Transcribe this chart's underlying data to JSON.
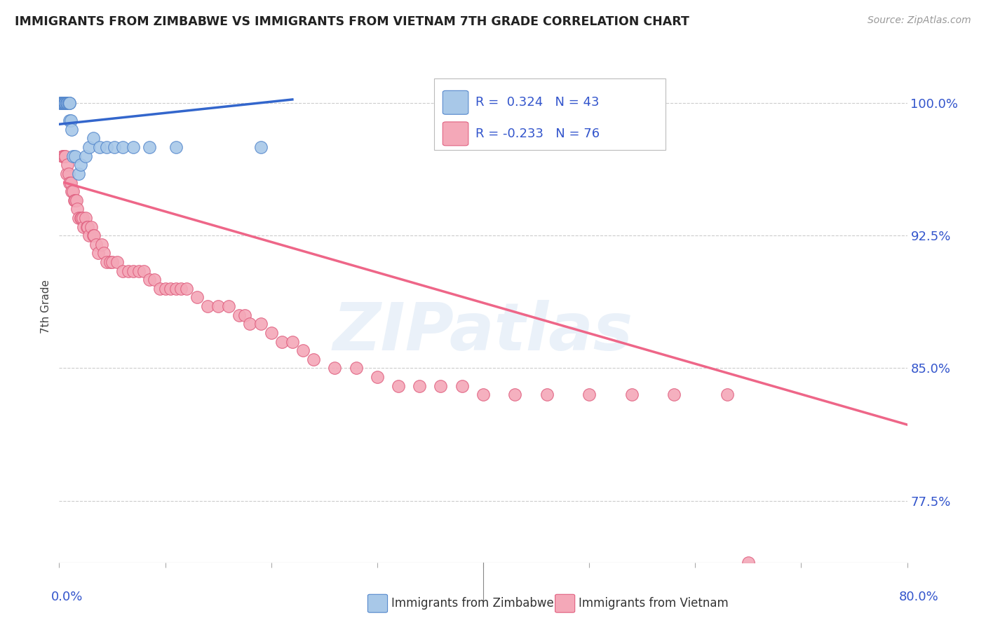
{
  "title": "IMMIGRANTS FROM ZIMBABWE VS IMMIGRANTS FROM VIETNAM 7TH GRADE CORRELATION CHART",
  "source": "Source: ZipAtlas.com",
  "ylabel": "7th Grade",
  "y_tick_labels": [
    "77.5%",
    "85.0%",
    "92.5%",
    "100.0%"
  ],
  "y_tick_vals": [
    0.775,
    0.85,
    0.925,
    1.0
  ],
  "legend_r_zimbabwe": "R =  0.324",
  "legend_n_zimbabwe": "N = 43",
  "legend_r_vietnam": "R = -0.233",
  "legend_n_vietnam": "N = 76",
  "watermark": "ZIPatlas",
  "blue_color": "#a8c8e8",
  "blue_edge": "#5588cc",
  "pink_color": "#f4a8b8",
  "pink_edge": "#e06080",
  "line_blue": "#3366cc",
  "line_pink": "#ee6688",
  "xlim": [
    0.0,
    0.8
  ],
  "ylim": [
    0.74,
    1.03
  ],
  "zimbabwe_x": [
    0.001,
    0.002,
    0.002,
    0.003,
    0.003,
    0.003,
    0.004,
    0.004,
    0.004,
    0.005,
    0.005,
    0.005,
    0.006,
    0.006,
    0.006,
    0.006,
    0.007,
    0.007,
    0.007,
    0.008,
    0.008,
    0.009,
    0.009,
    0.01,
    0.01,
    0.01,
    0.011,
    0.012,
    0.013,
    0.015,
    0.018,
    0.02,
    0.025,
    0.028,
    0.032,
    0.038,
    0.045,
    0.052,
    0.06,
    0.07,
    0.085,
    0.11,
    0.19
  ],
  "zimbabwe_y": [
    1.0,
    1.0,
    1.0,
    1.0,
    1.0,
    1.0,
    1.0,
    1.0,
    1.0,
    1.0,
    1.0,
    1.0,
    1.0,
    1.0,
    1.0,
    1.0,
    1.0,
    1.0,
    1.0,
    1.0,
    1.0,
    1.0,
    1.0,
    1.0,
    1.0,
    0.99,
    0.99,
    0.985,
    0.97,
    0.97,
    0.96,
    0.965,
    0.97,
    0.975,
    0.98,
    0.975,
    0.975,
    0.975,
    0.975,
    0.975,
    0.975,
    0.975,
    0.975
  ],
  "vietnam_x": [
    0.003,
    0.004,
    0.005,
    0.006,
    0.007,
    0.008,
    0.009,
    0.01,
    0.011,
    0.012,
    0.013,
    0.014,
    0.015,
    0.016,
    0.017,
    0.018,
    0.02,
    0.021,
    0.022,
    0.023,
    0.025,
    0.026,
    0.027,
    0.028,
    0.03,
    0.032,
    0.033,
    0.035,
    0.037,
    0.04,
    0.042,
    0.045,
    0.048,
    0.05,
    0.055,
    0.06,
    0.065,
    0.07,
    0.075,
    0.08,
    0.085,
    0.09,
    0.095,
    0.1,
    0.105,
    0.11,
    0.115,
    0.12,
    0.13,
    0.14,
    0.15,
    0.16,
    0.17,
    0.175,
    0.18,
    0.19,
    0.2,
    0.21,
    0.22,
    0.23,
    0.24,
    0.26,
    0.28,
    0.3,
    0.32,
    0.34,
    0.36,
    0.38,
    0.4,
    0.43,
    0.46,
    0.5,
    0.54,
    0.58,
    0.63,
    0.65
  ],
  "vietnam_y": [
    0.97,
    0.97,
    0.97,
    0.97,
    0.96,
    0.965,
    0.96,
    0.955,
    0.955,
    0.95,
    0.95,
    0.945,
    0.945,
    0.945,
    0.94,
    0.935,
    0.935,
    0.935,
    0.935,
    0.93,
    0.935,
    0.93,
    0.93,
    0.925,
    0.93,
    0.925,
    0.925,
    0.92,
    0.915,
    0.92,
    0.915,
    0.91,
    0.91,
    0.91,
    0.91,
    0.905,
    0.905,
    0.905,
    0.905,
    0.905,
    0.9,
    0.9,
    0.895,
    0.895,
    0.895,
    0.895,
    0.895,
    0.895,
    0.89,
    0.885,
    0.885,
    0.885,
    0.88,
    0.88,
    0.875,
    0.875,
    0.87,
    0.865,
    0.865,
    0.86,
    0.855,
    0.85,
    0.85,
    0.845,
    0.84,
    0.84,
    0.84,
    0.84,
    0.835,
    0.835,
    0.835,
    0.835,
    0.835,
    0.835,
    0.835,
    0.74
  ],
  "background_color": "#ffffff",
  "grid_color": "#cccccc"
}
